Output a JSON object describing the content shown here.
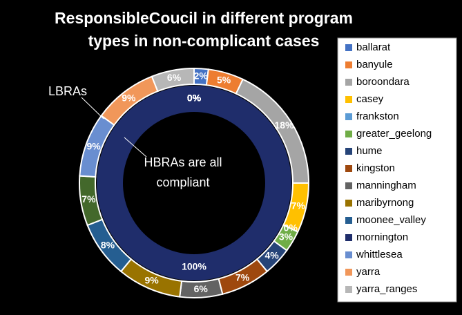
{
  "chart_data": {
    "type": "doughnut",
    "title": "ResponsibleCoucil in different program types in non-complicant cases",
    "categories": [
      "ballarat",
      "banyule",
      "boroondara",
      "casey",
      "frankston",
      "greater_geelong",
      "hume",
      "kingston",
      "manningham",
      "maribyrnong",
      "moonee_valley",
      "mornington",
      "whittlesea",
      "yarra",
      "yarra_ranges"
    ],
    "colors": [
      "#4472c4",
      "#ed7d31",
      "#a5a5a5",
      "#ffc000",
      "#5b9bd5",
      "#70ad47",
      "#264478",
      "#9e480e",
      "#636363",
      "#997300",
      "#255e91",
      "#1f2d6b",
      "#698ed0",
      "#f1975a",
      "#b7b7b7"
    ],
    "series": [
      {
        "values": [
          0,
          0,
          0,
          0,
          0,
          0,
          0,
          0,
          0,
          0,
          0,
          100,
          0,
          0,
          0
        ],
        "value_labels": [
          "0%",
          "0%",
          "0%",
          "0%",
          "0%",
          "0%",
          "0%",
          "0%",
          "0%",
          "0%",
          "0%",
          "100%",
          "0%",
          "0%",
          "0%"
        ],
        "colors": [
          "#4472c4",
          "#ed7d31",
          "#a5a5a5",
          "#ffc000",
          "#5b9bd5",
          "#70ad47",
          "#264478",
          "#9e480e",
          "#636363",
          "#997300",
          "#255e91",
          "#1f2d6b",
          "#698ed0",
          "#f1975a",
          "#b7b7b7"
        ]
      },
      {
        "values": [
          2,
          5,
          18,
          7,
          0,
          3,
          4,
          7,
          6,
          9,
          8,
          7,
          9,
          9,
          6
        ],
        "value_labels": [
          "2%",
          "5%",
          "18%",
          "7%",
          "0%",
          "3%",
          "4%",
          "7%",
          "6%",
          "9%",
          "8%",
          "7%",
          "9%",
          "9%",
          "6%"
        ],
        "colors": [
          "#4472c4",
          "#ed7d31",
          "#a5a5a5",
          "#ffc000",
          "#5b9bd5",
          "#70ad47",
          "#264478",
          "#9e480e",
          "#636363",
          "#997300",
          "#255e91",
          "#43682b",
          "#698ed0",
          "#f1975a",
          "#b7b7b7"
        ]
      }
    ],
    "annotations": [
      "LBRAs",
      "HBRAs are all",
      "compliant"
    ]
  }
}
